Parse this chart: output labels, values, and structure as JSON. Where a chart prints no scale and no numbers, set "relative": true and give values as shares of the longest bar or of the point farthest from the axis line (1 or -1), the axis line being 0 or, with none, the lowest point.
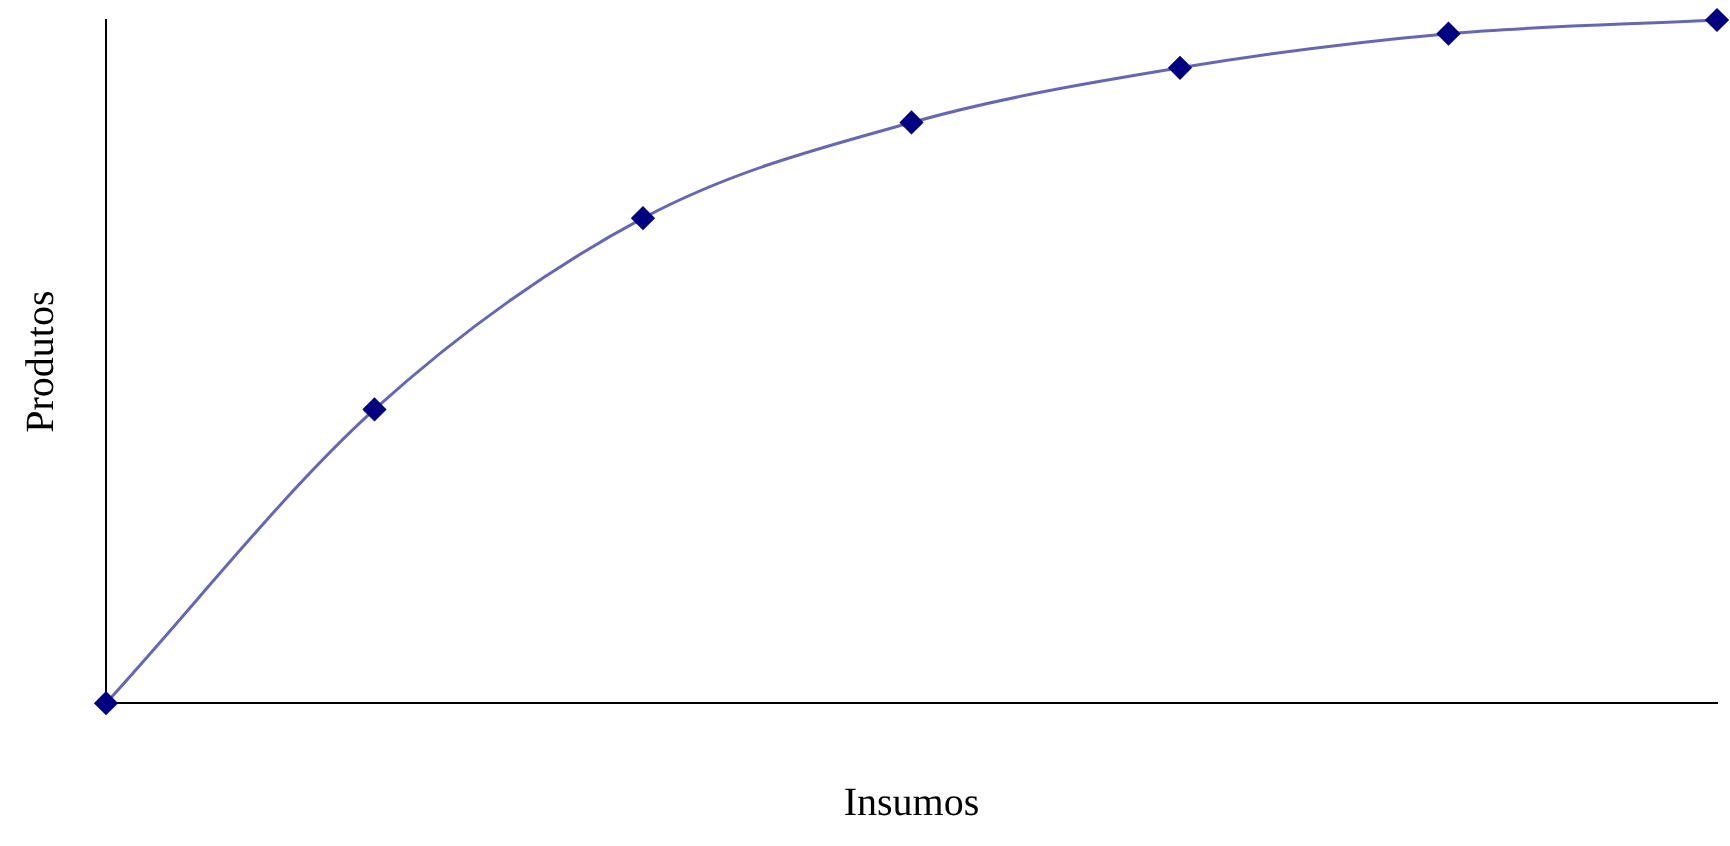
{
  "chart_data": {
    "type": "line",
    "xlabel": "Insumos",
    "ylabel": "Produtos",
    "relative": true,
    "categories": [
      null,
      null,
      null,
      null,
      null,
      null,
      null
    ],
    "series": [
      {
        "color": "#000080",
        "values": [
          0,
          0.43,
          0.71,
          0.85,
          0.93,
          0.98,
          1
        ]
      }
    ],
    "marker": "diamond",
    "line_style": "solid",
    "grid": false,
    "legend": false
  }
}
